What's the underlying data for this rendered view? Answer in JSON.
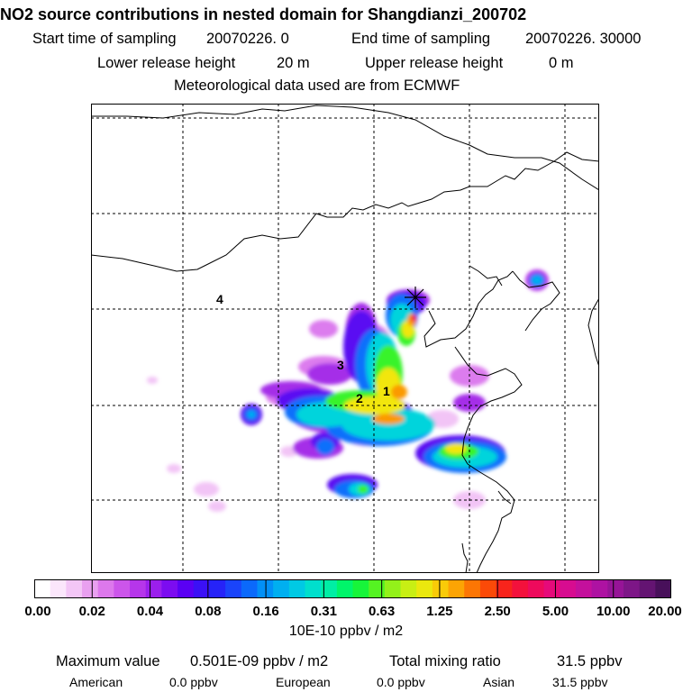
{
  "header": {
    "title": "NO2 source contributions in nested domain for Shangdianzi_200702",
    "start_label": "Start time of sampling",
    "start_value": "20070226.     0",
    "end_label": "End time of sampling",
    "end_value": "20070226. 30000",
    "lower_label": "Lower release height",
    "lower_value": "20 m",
    "upper_label": "Upper release height",
    "upper_value": "0 m",
    "met_text": "Meteorological data used are from ECMWF"
  },
  "map": {
    "site_marker": "asterisk",
    "region_labels": [
      "1",
      "2",
      "3",
      "4"
    ]
  },
  "colorbar": {
    "ticks": [
      "0.00",
      "0.02",
      "0.04",
      "0.08",
      "0.16",
      "0.31",
      "0.63",
      "1.25",
      "2.50",
      "5.00",
      "10.00",
      "20.00"
    ],
    "colors": [
      "#ffffff",
      "#fbe6fb",
      "#f3c6f6",
      "#e9a0f0",
      "#dd78ec",
      "#cc55ea",
      "#b636ea",
      "#9b1fec",
      "#7c0cf0",
      "#5a00f4",
      "#3b10f6",
      "#2623f8",
      "#1a44fa",
      "#0b69fb",
      "#0290f7",
      "#00aff0",
      "#00c9e4",
      "#00dfcd",
      "#00eea5",
      "#00f56a",
      "#17f53a",
      "#55f322",
      "#93f11a",
      "#c8ef14",
      "#ebe80e",
      "#f9cb08",
      "#fca404",
      "#fc7604",
      "#fb4a08",
      "#f8241c",
      "#f3113c",
      "#ee0a5c",
      "#e60a7a",
      "#d70c90",
      "#c4109c",
      "#ae12a2",
      "#961497",
      "#7d1687",
      "#641472",
      "#48105a"
    ]
  },
  "unit_text": "10E-10 ppbv / m2",
  "stats": {
    "max_label": "Maximum value",
    "max_value": "0.501E-09 ppbv / m2",
    "total_label": "Total mixing ratio",
    "total_value": "31.5 ppbv",
    "american_label": "American",
    "american_value": "0.0 ppbv",
    "european_label": "European",
    "european_value": "0.0 ppbv",
    "asian_label": "Asian",
    "asian_value": "31.5 ppbv"
  }
}
